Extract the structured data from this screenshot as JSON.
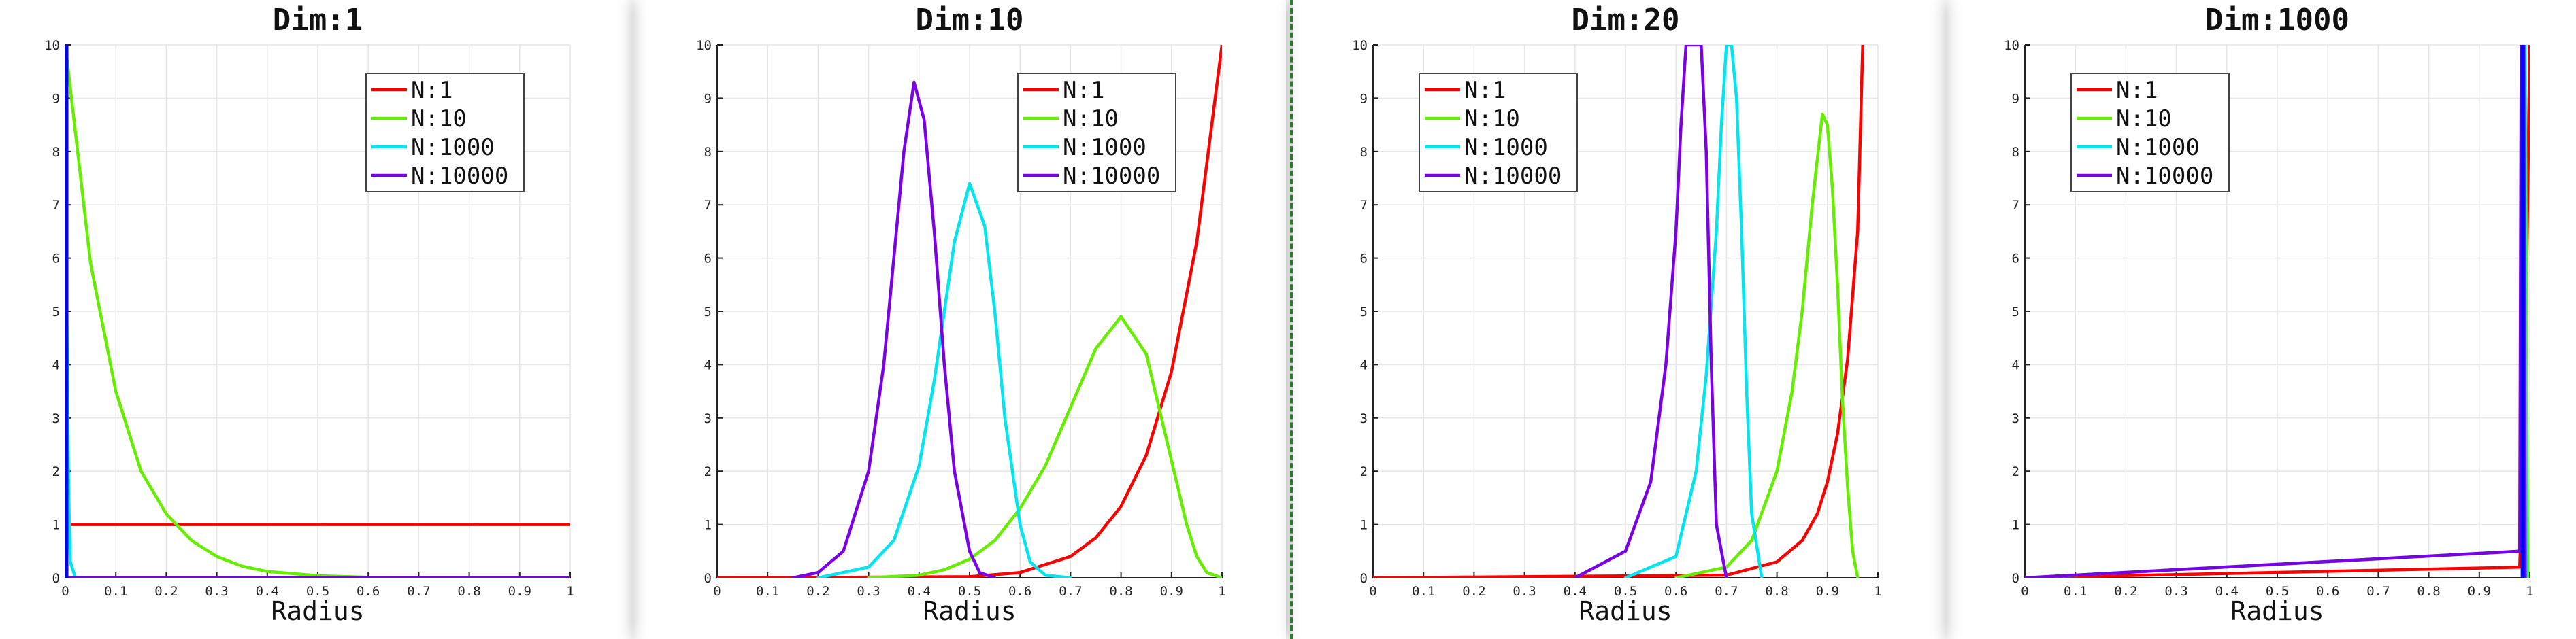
{
  "chart_data": [
    {
      "type": "line",
      "title": "Dim:1",
      "xlabel": "Radius",
      "ylabel": "",
      "xlim": [
        0,
        1
      ],
      "ylim": [
        0,
        10
      ],
      "grid": true,
      "legend_position": "top-right",
      "x_ticks": [
        "0",
        "0.1",
        "0.2",
        "0.3",
        "0.4",
        "0.5",
        "0.6",
        "0.7",
        "0.8",
        "0.9",
        "1"
      ],
      "y_ticks": [
        "0",
        "1",
        "2",
        "3",
        "4",
        "5",
        "6",
        "7",
        "8",
        "9",
        "10"
      ],
      "series": [
        {
          "name": "N:1",
          "color": "#ff0000",
          "x": [
            0,
            1
          ],
          "y": [
            1,
            1
          ]
        },
        {
          "name": "N:10",
          "color": "#66ee00",
          "x": [
            0,
            0.05,
            0.1,
            0.15,
            0.2,
            0.25,
            0.3,
            0.35,
            0.4,
            0.5,
            0.6,
            0.8,
            1.0
          ],
          "y": [
            10,
            5.9,
            3.5,
            2.0,
            1.2,
            0.7,
            0.4,
            0.22,
            0.12,
            0.04,
            0.01,
            0.0,
            0.0
          ]
        },
        {
          "name": "N:1000",
          "color": "#00e5ee",
          "x": [
            0,
            0.003,
            0.006,
            0.008,
            0.01,
            0.02,
            1.0
          ],
          "y": [
            10,
            5,
            2,
            1,
            0.3,
            0,
            0
          ]
        },
        {
          "name": "N:10000",
          "color": "#7a00e6",
          "x": [
            0,
            0.0005,
            0.001,
            0.002,
            1.0
          ],
          "y": [
            10,
            5,
            1,
            0,
            0
          ]
        }
      ],
      "extra_lines": [
        {
          "color": "#0000ff",
          "x": [
            0.002,
            0.002
          ],
          "y": [
            0,
            10
          ]
        }
      ]
    },
    {
      "type": "line",
      "title": "Dim:10",
      "xlabel": "Radius",
      "ylabel": "",
      "xlim": [
        0,
        1
      ],
      "ylim": [
        0,
        10
      ],
      "grid": true,
      "legend_position": "top-right",
      "x_ticks": [
        "0",
        "0.1",
        "0.2",
        "0.3",
        "0.4",
        "0.5",
        "0.6",
        "0.7",
        "0.8",
        "0.9",
        "1"
      ],
      "y_ticks": [
        "0",
        "1",
        "2",
        "3",
        "4",
        "5",
        "6",
        "7",
        "8",
        "9",
        "10"
      ],
      "series": [
        {
          "name": "N:1",
          "color": "#ff0000",
          "x": [
            0,
            0.5,
            0.6,
            0.7,
            0.75,
            0.8,
            0.85,
            0.9,
            0.95,
            1.0
          ],
          "y": [
            0,
            0.02,
            0.1,
            0.4,
            0.75,
            1.34,
            2.3,
            3.87,
            6.3,
            10
          ]
        },
        {
          "name": "N:10",
          "color": "#66ee00",
          "x": [
            0.3,
            0.4,
            0.45,
            0.5,
            0.55,
            0.6,
            0.65,
            0.7,
            0.75,
            0.8,
            0.85,
            0.9,
            0.93,
            0.95,
            0.97,
            1.0
          ],
          "y": [
            0,
            0.05,
            0.15,
            0.35,
            0.7,
            1.3,
            2.1,
            3.2,
            4.3,
            4.9,
            4.2,
            2.2,
            1.0,
            0.4,
            0.1,
            0
          ]
        },
        {
          "name": "N:1000",
          "color": "#00e5ee",
          "x": [
            0.2,
            0.3,
            0.35,
            0.4,
            0.43,
            0.45,
            0.47,
            0.5,
            0.53,
            0.55,
            0.57,
            0.6,
            0.62,
            0.65,
            0.7
          ],
          "y": [
            0,
            0.2,
            0.7,
            2.1,
            3.7,
            5.0,
            6.3,
            7.4,
            6.6,
            5.0,
            3.0,
            1.0,
            0.3,
            0.05,
            0
          ]
        },
        {
          "name": "N:10000",
          "color": "#7a00e6",
          "x": [
            0.15,
            0.2,
            0.25,
            0.3,
            0.33,
            0.35,
            0.37,
            0.39,
            0.41,
            0.43,
            0.45,
            0.47,
            0.5,
            0.52,
            0.55
          ],
          "y": [
            0,
            0.1,
            0.5,
            2.0,
            4.0,
            6.0,
            8.0,
            9.3,
            8.6,
            6.5,
            4.0,
            2.0,
            0.5,
            0.1,
            0
          ]
        }
      ]
    },
    {
      "type": "line",
      "title": "Dim:20",
      "xlabel": "Radius",
      "ylabel": "",
      "xlim": [
        0,
        1
      ],
      "ylim": [
        0,
        10
      ],
      "grid": true,
      "legend_position": "top-left",
      "x_ticks": [
        "0",
        "0.1",
        "0.2",
        "0.3",
        "0.4",
        "0.5",
        "0.6",
        "0.7",
        "0.8",
        "0.9",
        "1"
      ],
      "y_ticks": [
        "0",
        "1",
        "2",
        "3",
        "4",
        "5",
        "6",
        "7",
        "8",
        "9",
        "10"
      ],
      "series": [
        {
          "name": "N:1",
          "color": "#ff0000",
          "x": [
            0,
            0.7,
            0.8,
            0.85,
            0.88,
            0.9,
            0.92,
            0.94,
            0.96,
            0.97
          ],
          "y": [
            0,
            0.05,
            0.3,
            0.7,
            1.2,
            1.8,
            2.7,
            4.1,
            6.5,
            10
          ]
        },
        {
          "name": "N:10",
          "color": "#66ee00",
          "x": [
            0.6,
            0.7,
            0.75,
            0.8,
            0.83,
            0.85,
            0.87,
            0.89,
            0.9,
            0.91,
            0.92,
            0.93,
            0.94,
            0.95,
            0.96
          ],
          "y": [
            0,
            0.2,
            0.7,
            2.0,
            3.5,
            5.0,
            7.0,
            8.7,
            8.5,
            7.3,
            5.5,
            3.3,
            1.7,
            0.5,
            0
          ]
        },
        {
          "name": "N:1000",
          "color": "#00e5ee",
          "x": [
            0.5,
            0.6,
            0.64,
            0.66,
            0.68,
            0.69,
            0.7,
            0.71,
            0.72,
            0.73,
            0.74,
            0.75,
            0.77
          ],
          "y": [
            0,
            0.4,
            2.0,
            3.8,
            6.5,
            8.5,
            10,
            10,
            9.0,
            6.5,
            3.5,
            1.2,
            0
          ]
        },
        {
          "name": "N:10000",
          "color": "#7a00e6",
          "x": [
            0.4,
            0.5,
            0.55,
            0.58,
            0.6,
            0.61,
            0.62,
            0.63,
            0.64,
            0.65,
            0.66,
            0.67,
            0.68,
            0.7
          ],
          "y": [
            0,
            0.5,
            1.8,
            4.0,
            6.5,
            8.5,
            10,
            10,
            10,
            10,
            8.0,
            4.0,
            1.0,
            0
          ]
        }
      ]
    },
    {
      "type": "line",
      "title": "Dim:1000",
      "xlabel": "Radius",
      "ylabel": "",
      "xlim": [
        0,
        1
      ],
      "ylim": [
        0,
        10
      ],
      "grid": true,
      "legend_position": "top-left",
      "x_ticks": [
        "0",
        "0.1",
        "0.2",
        "0.3",
        "0.4",
        "0.5",
        "0.6",
        "0.7",
        "0.8",
        "0.9",
        "1"
      ],
      "y_ticks": [
        "0",
        "1",
        "2",
        "3",
        "4",
        "5",
        "6",
        "7",
        "8",
        "9",
        "10"
      ],
      "series": [
        {
          "name": "N:1",
          "color": "#ff0000",
          "x": [
            0,
            0.98,
            0.99,
            1.0
          ],
          "y": [
            0,
            0.2,
            3.0,
            10
          ]
        },
        {
          "name": "N:10",
          "color": "#66ee00",
          "x": [
            0,
            0.984,
            0.988,
            0.991,
            0.996
          ],
          "y": [
            0,
            0.5,
            10,
            10,
            0
          ]
        },
        {
          "name": "N:1000",
          "color": "#00e5ee",
          "x": [
            0,
            0.982,
            0.985,
            0.99,
            0.993
          ],
          "y": [
            0,
            0.5,
            10,
            10,
            0
          ]
        },
        {
          "name": "N:10000",
          "color": "#7a00e6",
          "x": [
            0,
            0.98,
            0.983,
            0.988,
            0.991
          ],
          "y": [
            0,
            0.5,
            10,
            10,
            0
          ]
        }
      ],
      "extra_lines": [
        {
          "color": "#0000ff",
          "x": [
            0.986,
            0.986
          ],
          "y": [
            0,
            10
          ]
        }
      ]
    }
  ]
}
